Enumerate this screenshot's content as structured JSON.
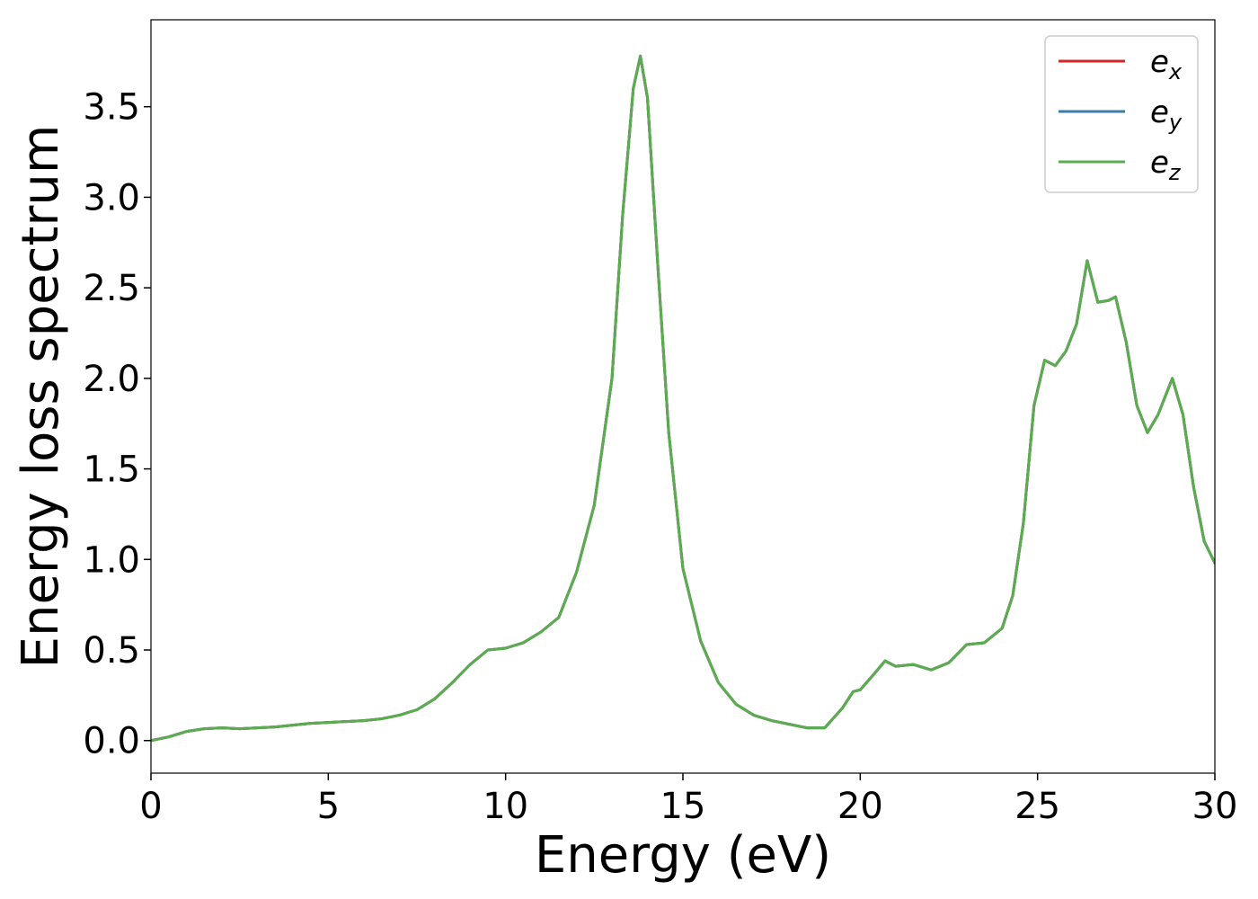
{
  "chart_data": {
    "type": "line",
    "title": "",
    "xlabel": "Energy (eV)",
    "ylabel": "Energy loss spectrum",
    "xlim": [
      0,
      30
    ],
    "ylim": [
      -0.18,
      3.98
    ],
    "xticks": [
      "0",
      "5",
      "10",
      "15",
      "20",
      "25",
      "30"
    ],
    "yticks": [
      "0.0",
      "0.5",
      "1.0",
      "1.5",
      "2.0",
      "2.5",
      "3.0",
      "3.5"
    ],
    "grid": false,
    "legend_position": "top-right",
    "x": [
      0,
      0.5,
      1.0,
      1.5,
      2.0,
      2.5,
      3.0,
      3.5,
      4.0,
      4.5,
      5.0,
      5.5,
      6.0,
      6.5,
      7.0,
      7.5,
      8.0,
      8.5,
      9.0,
      9.5,
      10.0,
      10.5,
      11.0,
      11.5,
      12.0,
      12.5,
      13.0,
      13.3,
      13.6,
      13.8,
      14.0,
      14.3,
      14.6,
      15.0,
      15.5,
      16.0,
      16.5,
      17.0,
      17.5,
      18.0,
      18.5,
      19.0,
      19.5,
      19.8,
      20.0,
      20.4,
      20.7,
      21.0,
      21.5,
      22.0,
      22.5,
      23.0,
      23.5,
      24.0,
      24.3,
      24.6,
      24.9,
      25.2,
      25.5,
      25.8,
      26.1,
      26.4,
      26.7,
      27.0,
      27.2,
      27.5,
      27.8,
      28.1,
      28.4,
      28.8,
      29.1,
      29.4,
      29.7,
      30.0
    ],
    "series": [
      {
        "name": "e_x",
        "color": "#d62728",
        "values": [
          0.0,
          0.02,
          0.05,
          0.065,
          0.07,
          0.065,
          0.07,
          0.075,
          0.085,
          0.095,
          0.1,
          0.105,
          0.11,
          0.12,
          0.14,
          0.17,
          0.23,
          0.32,
          0.42,
          0.5,
          0.51,
          0.54,
          0.6,
          0.68,
          0.93,
          1.3,
          2.0,
          2.9,
          3.6,
          3.78,
          3.55,
          2.6,
          1.7,
          0.95,
          0.55,
          0.32,
          0.2,
          0.14,
          0.11,
          0.09,
          0.07,
          0.07,
          0.18,
          0.27,
          0.28,
          0.37,
          0.44,
          0.41,
          0.42,
          0.39,
          0.43,
          0.53,
          0.54,
          0.62,
          0.8,
          1.2,
          1.85,
          2.1,
          2.07,
          2.15,
          2.3,
          2.65,
          2.42,
          2.43,
          2.45,
          2.2,
          1.85,
          1.7,
          1.8,
          2.0,
          1.8,
          1.4,
          1.1,
          0.98
        ]
      },
      {
        "name": "e_y",
        "color": "#3a7ca5",
        "values": [
          0.0,
          0.02,
          0.05,
          0.065,
          0.07,
          0.065,
          0.07,
          0.075,
          0.085,
          0.095,
          0.1,
          0.105,
          0.11,
          0.12,
          0.14,
          0.17,
          0.23,
          0.32,
          0.42,
          0.5,
          0.51,
          0.54,
          0.6,
          0.68,
          0.93,
          1.3,
          2.0,
          2.9,
          3.6,
          3.78,
          3.55,
          2.6,
          1.7,
          0.95,
          0.55,
          0.32,
          0.2,
          0.14,
          0.11,
          0.09,
          0.07,
          0.07,
          0.18,
          0.27,
          0.28,
          0.37,
          0.44,
          0.41,
          0.42,
          0.39,
          0.43,
          0.53,
          0.54,
          0.62,
          0.8,
          1.2,
          1.85,
          2.1,
          2.07,
          2.15,
          2.3,
          2.65,
          2.42,
          2.43,
          2.45,
          2.2,
          1.85,
          1.7,
          1.8,
          2.0,
          1.8,
          1.4,
          1.1,
          0.98
        ]
      },
      {
        "name": "e_z",
        "color": "#5aac4f",
        "values": [
          0.0,
          0.02,
          0.05,
          0.065,
          0.07,
          0.065,
          0.07,
          0.075,
          0.085,
          0.095,
          0.1,
          0.105,
          0.11,
          0.12,
          0.14,
          0.17,
          0.23,
          0.32,
          0.42,
          0.5,
          0.51,
          0.54,
          0.6,
          0.68,
          0.93,
          1.3,
          2.0,
          2.9,
          3.6,
          3.78,
          3.55,
          2.6,
          1.7,
          0.95,
          0.55,
          0.32,
          0.2,
          0.14,
          0.11,
          0.09,
          0.07,
          0.07,
          0.18,
          0.27,
          0.28,
          0.37,
          0.44,
          0.41,
          0.42,
          0.39,
          0.43,
          0.53,
          0.54,
          0.62,
          0.8,
          1.2,
          1.85,
          2.1,
          2.07,
          2.15,
          2.3,
          2.65,
          2.42,
          2.43,
          2.45,
          2.2,
          1.85,
          1.7,
          1.8,
          2.0,
          1.8,
          1.4,
          1.1,
          0.98
        ]
      }
    ],
    "legend": [
      {
        "base": "e",
        "sub": "x",
        "color": "#d62728"
      },
      {
        "base": "e",
        "sub": "y",
        "color": "#3a7ca5"
      },
      {
        "base": "e",
        "sub": "z",
        "color": "#5aac4f"
      }
    ]
  }
}
